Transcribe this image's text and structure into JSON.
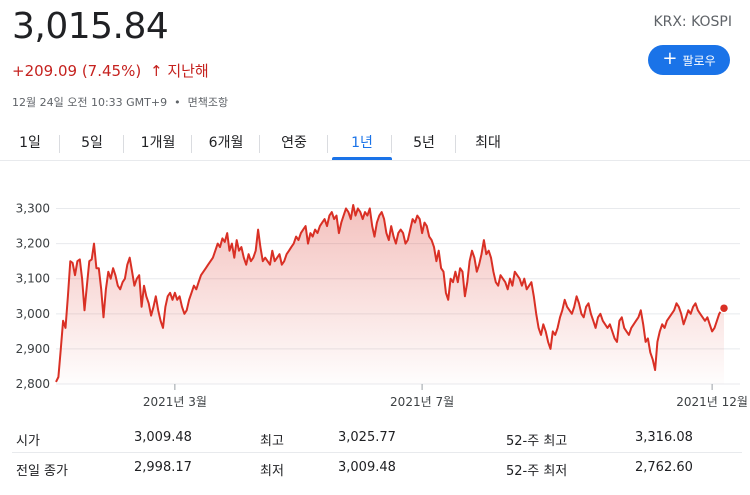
{
  "header": {
    "price": "3,015.84",
    "change": "+209.09 (7.45%)",
    "change_arrow": "🡑",
    "change_period": "지난해",
    "timestamp": "12월 24일 오전 10:33 GMT+9",
    "disclaimer": "면책조항",
    "ticker": "KRX: KOSPI",
    "follow_label": "팔로우"
  },
  "tabs": [
    {
      "label": "1일"
    },
    {
      "label": "5일"
    },
    {
      "label": "1개월"
    },
    {
      "label": "6개월"
    },
    {
      "label": "연중"
    },
    {
      "label": "1년",
      "active": true
    },
    {
      "label": "5년"
    },
    {
      "label": "최대"
    }
  ],
  "chart_data": {
    "type": "area",
    "y_ticks": [
      "3,300",
      "3,200",
      "3,100",
      "3,000",
      "2,900",
      "2,800"
    ],
    "y_tick_values": [
      3300,
      3200,
      3100,
      3000,
      2900,
      2800
    ],
    "ylim": [
      2800,
      3350
    ],
    "x_labels": [
      {
        "label": "2021년 3월",
        "index": 50
      },
      {
        "label": "2021년 7월",
        "index": 154
      },
      {
        "label": "2021년 12월",
        "index": 276
      }
    ],
    "series": [
      {
        "color": "#d93025",
        "values": [
          2806,
          2820,
          2900,
          2980,
          2960,
          3050,
          3150,
          3145,
          3110,
          3150,
          3155,
          3100,
          3010,
          3080,
          3150,
          3155,
          3200,
          3130,
          3130,
          3070,
          2990,
          3070,
          3120,
          3100,
          3130,
          3110,
          3080,
          3070,
          3090,
          3100,
          3140,
          3160,
          3120,
          3080,
          3100,
          3110,
          3020,
          3080,
          3050,
          3030,
          2995,
          3020,
          3050,
          3010,
          2980,
          2960,
          3020,
          3050,
          3060,
          3040,
          3060,
          3040,
          3050,
          3020,
          3000,
          3010,
          3040,
          3060,
          3080,
          3070,
          3090,
          3110,
          3120,
          3130,
          3140,
          3150,
          3160,
          3180,
          3200,
          3190,
          3215,
          3205,
          3230,
          3180,
          3200,
          3160,
          3210,
          3180,
          3190,
          3160,
          3140,
          3170,
          3150,
          3160,
          3180,
          3240,
          3190,
          3150,
          3160,
          3150,
          3140,
          3180,
          3150,
          3160,
          3170,
          3140,
          3150,
          3170,
          3180,
          3190,
          3200,
          3220,
          3210,
          3230,
          3240,
          3250,
          3200,
          3230,
          3220,
          3240,
          3230,
          3250,
          3260,
          3270,
          3250,
          3280,
          3290,
          3270,
          3280,
          3230,
          3260,
          3280,
          3300,
          3290,
          3270,
          3310,
          3280,
          3300,
          3290,
          3270,
          3290,
          3280,
          3300,
          3250,
          3220,
          3260,
          3280,
          3290,
          3270,
          3230,
          3210,
          3250,
          3220,
          3200,
          3230,
          3240,
          3230,
          3200,
          3210,
          3240,
          3270,
          3260,
          3280,
          3270,
          3230,
          3260,
          3250,
          3220,
          3210,
          3190,
          3150,
          3180,
          3130,
          3120,
          3060,
          3040,
          3100,
          3090,
          3120,
          3090,
          3130,
          3120,
          3050,
          3090,
          3150,
          3180,
          3160,
          3120,
          3140,
          3170,
          3210,
          3170,
          3180,
          3160,
          3120,
          3090,
          3080,
          3110,
          3100,
          3090,
          3070,
          3100,
          3080,
          3120,
          3110,
          3100,
          3080,
          3100,
          3070,
          3080,
          3090,
          3050,
          3000,
          2960,
          2940,
          2970,
          2950,
          2920,
          2900,
          2950,
          2940,
          2960,
          2990,
          3010,
          3040,
          3020,
          3010,
          3000,
          3020,
          3050,
          3030,
          3000,
          2990,
          3020,
          3030,
          3000,
          2980,
          2960,
          2990,
          3000,
          2980,
          2970,
          2960,
          2970,
          2950,
          2930,
          2920,
          2980,
          2990,
          2960,
          2950,
          2940,
          2960,
          2970,
          2980,
          2990,
          3010,
          2970,
          2920,
          2930,
          2890,
          2870,
          2840,
          2920,
          2950,
          2970,
          2960,
          2980,
          2990,
          3000,
          3010,
          3030,
          3020,
          3000,
          2970,
          2990,
          3010,
          3000,
          3020,
          3030,
          3010,
          3000,
          2990,
          2980,
          2990,
          2970,
          2950,
          2960,
          2980,
          3000,
          3010,
          3016
        ]
      }
    ]
  },
  "stats": [
    [
      {
        "label": "시가",
        "value": "3,009.48"
      },
      {
        "label": "최고",
        "value": "3,025.77"
      },
      {
        "label": "52-주 최고",
        "value": "3,316.08"
      }
    ],
    [
      {
        "label": "전일 종가",
        "value": "2,998.17"
      },
      {
        "label": "최저",
        "value": "3,009.48"
      },
      {
        "label": "52-주 최저",
        "value": "2,762.60"
      }
    ]
  ]
}
